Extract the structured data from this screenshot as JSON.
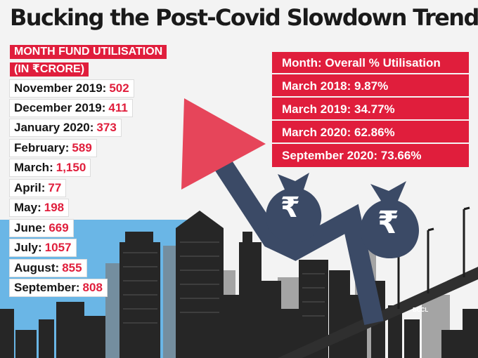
{
  "title": "Bucking the Post-Covid Slowdown Trend",
  "left_header": [
    "MONTH FUND UTILISATION",
    "(IN ₹CRORE)"
  ],
  "monthly": [
    {
      "month": "November 2019:",
      "value": "502"
    },
    {
      "month": "December 2019:",
      "value": "411"
    },
    {
      "month": "January 2020:",
      "value": "373"
    },
    {
      "month": "February:",
      "value": "589"
    },
    {
      "month": "March:",
      "value": "1,150"
    },
    {
      "month": "April:",
      "value": "77"
    },
    {
      "month": "May:",
      "value": "198"
    },
    {
      "month": "June:",
      "value": "669"
    },
    {
      "month": "July:",
      "value": "1057"
    },
    {
      "month": "August:",
      "value": "855"
    },
    {
      "month": "September:",
      "value": "808"
    }
  ],
  "overall_header": "Month: Overall % Utilisation",
  "overall": [
    "March 2018: 9.87%",
    "March 2019: 34.77%",
    "March 2020: 62.86%",
    "September 2020: 73.66%"
  ],
  "rupee_symbol": "₹",
  "credit": "BCCL",
  "colors": {
    "red": "#e01e3c",
    "blue": "#6ab6e6",
    "arrow": "#3b4a66",
    "skyline": "#2b2b2b"
  }
}
